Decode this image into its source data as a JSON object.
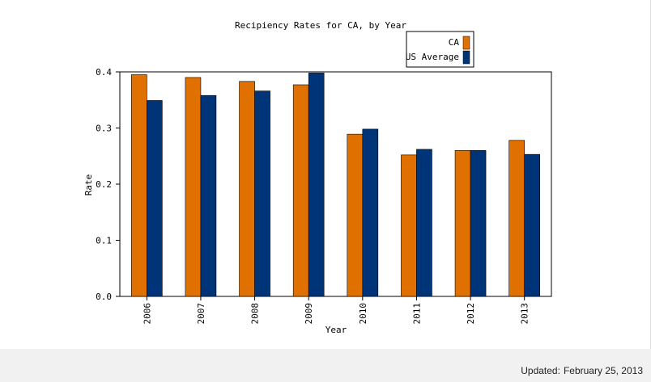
{
  "chart_data": {
    "type": "bar",
    "title": "Recipiency Rates for CA, by Year",
    "xlabel": "Year",
    "ylabel": "Rate",
    "categories": [
      "2006",
      "2007",
      "2008",
      "2009",
      "2010",
      "2011",
      "2012",
      "2013"
    ],
    "series": [
      {
        "name": "CA",
        "color": "#e07000",
        "values": [
          0.395,
          0.39,
          0.383,
          0.377,
          0.289,
          0.252,
          0.26,
          0.278
        ]
      },
      {
        "name": "US Average",
        "color": "#003478",
        "values": [
          0.349,
          0.358,
          0.366,
          0.398,
          0.298,
          0.262,
          0.26,
          0.253
        ]
      }
    ],
    "ylim": [
      0,
      0.4
    ],
    "yticks": [
      "0.0",
      "0.1",
      "0.2",
      "0.3",
      "0.4"
    ],
    "grid": false,
    "legend_position": "top-right"
  },
  "footer": {
    "updated_label": "Updated:",
    "updated_date": "February 25, 2013"
  }
}
